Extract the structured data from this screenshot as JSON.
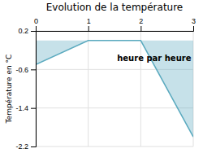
{
  "chart_data": {
    "type": "area",
    "title": "Evolution de la température",
    "y_label": "Température en °C",
    "x": [
      0,
      1,
      2,
      3
    ],
    "values": [
      -0.5,
      0.0,
      0.0,
      -2.0
    ],
    "color": "#5baabf",
    "xlim": [
      0,
      3
    ],
    "xticks": [
      0,
      1,
      2,
      3
    ],
    "ylim": [
      -2.2,
      0.2
    ],
    "yticks": [
      0.2,
      -0.6,
      -1.4,
      -2.2
    ],
    "grid": true,
    "annotations": [
      {
        "text": "heure par heure",
        "x": 1.55,
        "y": -0.38
      }
    ]
  }
}
